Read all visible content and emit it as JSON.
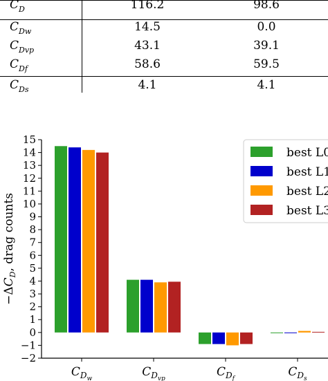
{
  "table": {
    "rows": [
      {
        "symbol": "C",
        "sub": "D",
        "a": "116.2",
        "b": "98.6"
      },
      {
        "symbol": "C",
        "sub": "Dw",
        "a": "14.5",
        "b": "0.0"
      },
      {
        "symbol": "C",
        "sub": "Dvp",
        "a": "43.1",
        "b": "39.1"
      },
      {
        "symbol": "C",
        "sub": "Df",
        "a": "58.6",
        "b": "59.5"
      },
      {
        "symbol": "C",
        "sub": "Ds",
        "a": "4.1",
        "b": "4.1"
      }
    ]
  },
  "chart_data": {
    "type": "bar",
    "ylabel": "−ΔC_D, drag counts",
    "ylim": [
      -2,
      15
    ],
    "yticks": [
      -2,
      -1,
      0,
      1,
      2,
      3,
      4,
      5,
      6,
      7,
      8,
      9,
      10,
      11,
      12,
      13,
      14,
      15
    ],
    "grid": false,
    "legend_position": "top-right",
    "categories": [
      {
        "base": "C",
        "sub": "D",
        "subsub": "w"
      },
      {
        "base": "C",
        "sub": "D",
        "subsub": "vp"
      },
      {
        "base": "C",
        "sub": "D",
        "subsub": "f"
      },
      {
        "base": "C",
        "sub": "D",
        "subsub": "s"
      }
    ],
    "series": [
      {
        "name": "best L0",
        "color": "#2ca02c",
        "values": [
          14.5,
          4.1,
          -0.9,
          -0.05
        ]
      },
      {
        "name": "best L1",
        "color": "#0000cc",
        "values": [
          14.4,
          4.1,
          -0.9,
          -0.05
        ]
      },
      {
        "name": "best L2",
        "color": "#ff9900",
        "values": [
          14.2,
          3.9,
          -1.0,
          0.12
        ]
      },
      {
        "name": "best L3",
        "color": "#b22222",
        "values": [
          14.0,
          3.95,
          -0.9,
          0.05
        ]
      }
    ]
  }
}
